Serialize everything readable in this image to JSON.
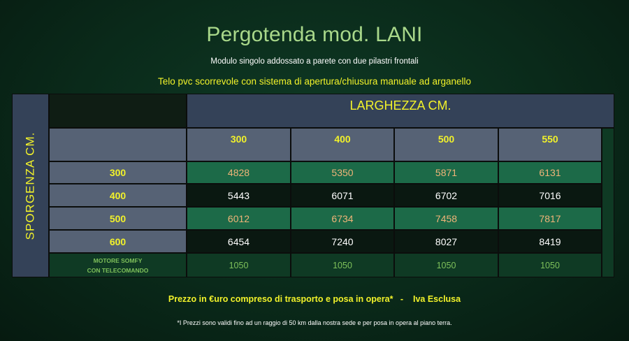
{
  "title": "Pergotenda mod. LANI",
  "subtitle": "Modulo singolo addossato a parete con due pilastri frontali",
  "subtitle2": "Telo pvc scorrevole con sistema di apertura/chiusura manuale ad arganello",
  "table": {
    "row_axis_label": "SPORGENZA  CM.",
    "col_axis_label": "LARGHEZZA CM.",
    "columns": [
      "300",
      "400",
      "500",
      "550"
    ],
    "rows": [
      {
        "label": "300",
        "values": [
          "4828",
          "5350",
          "5871",
          "6131"
        ]
      },
      {
        "label": "400",
        "values": [
          "5443",
          "6071",
          "6702",
          "7016"
        ]
      },
      {
        "label": "500",
        "values": [
          "6012",
          "6734",
          "7458",
          "7817"
        ]
      },
      {
        "label": "600",
        "values": [
          "6454",
          "7240",
          "8027",
          "8419"
        ]
      }
    ],
    "motor_row": {
      "label_line1": "MOTORE SOMFY",
      "label_line2": "CON TELECOMANDO",
      "values": [
        "1050",
        "1050",
        "1050",
        "1050"
      ]
    }
  },
  "price_note": "Prezzo in €uro compreso di trasporto e posa in opera*   -    Iva Esclusa",
  "footnote": "*I Prezzi sono validi fino ad un raggio di 50 km dalla nostra sede e per posa in opera al piano terra.",
  "colors": {
    "title": "#a9d88a",
    "accent_yellow": "#f2f22a",
    "header_blue": "#344258",
    "header_grey": "#566275",
    "row_green": "#1c6a48",
    "row_dark": "#0a1811",
    "green_row_text": "#f0b478",
    "motor_text": "#7ec05a"
  }
}
